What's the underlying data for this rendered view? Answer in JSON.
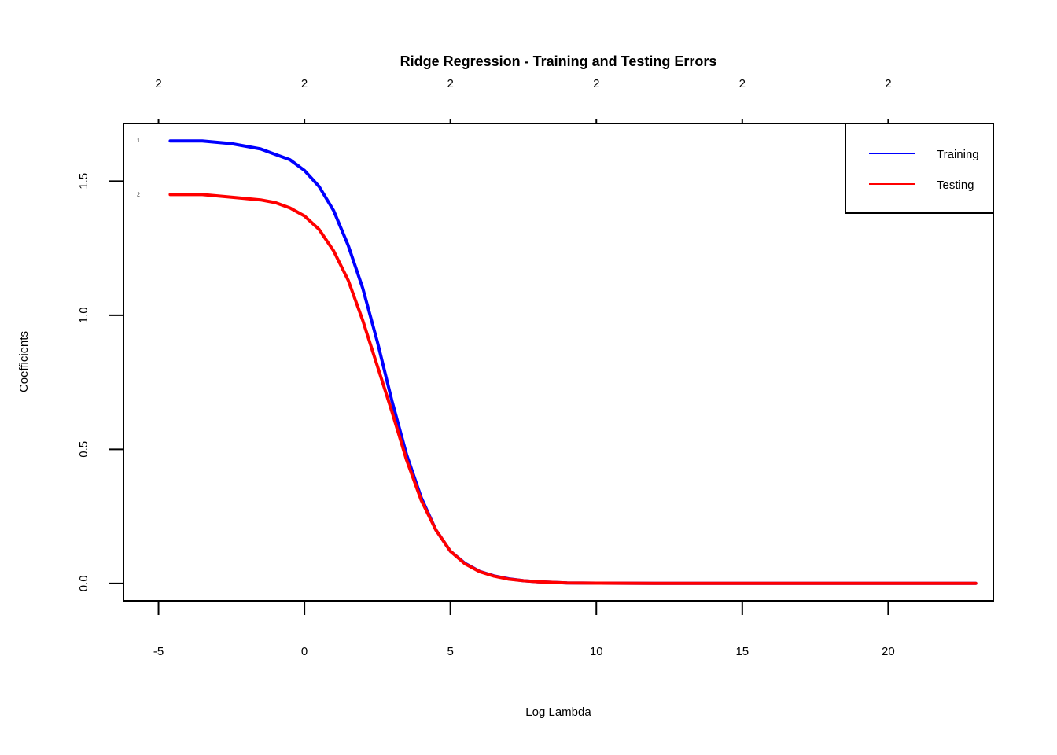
{
  "chart_data": {
    "type": "line",
    "title": "Ridge Regression - Training and Testing Errors",
    "xlabel": "Log Lambda",
    "ylabel": "Coefficients",
    "xlim": [
      -6.2,
      23.6
    ],
    "ylim": [
      -0.065,
      1.715
    ],
    "x_ticks": [
      -5,
      0,
      5,
      10,
      15,
      20
    ],
    "x_tick_labels": [
      "-5",
      "0",
      "5",
      "10",
      "15",
      "20"
    ],
    "y_ticks": [
      0,
      0.5,
      1,
      1.5
    ],
    "y_tick_labels": [
      "0.0",
      "0.5",
      "1.0",
      "1.5"
    ],
    "top_ticks": [
      -5,
      0,
      5,
      10,
      15,
      20
    ],
    "top_tick_labels": [
      "2",
      "2",
      "2",
      "2",
      "2",
      "2"
    ],
    "grid": false,
    "legend": {
      "position": "top-right",
      "entries": [
        "Training",
        "Testing"
      ]
    },
    "curve_labels": [
      "1",
      "2"
    ],
    "x": [
      -4.6,
      -3.5,
      -2.5,
      -1.5,
      -1,
      -0.5,
      0,
      0.5,
      1,
      1.5,
      2,
      2.5,
      3,
      3.5,
      4,
      4.5,
      5,
      5.5,
      6,
      6.5,
      7,
      7.5,
      8,
      8.5,
      9,
      10,
      12,
      15,
      18,
      21,
      23
    ],
    "series": [
      {
        "name": "Training",
        "color": "#0000ff",
        "values": [
          1.65,
          1.65,
          1.64,
          1.62,
          1.6,
          1.58,
          1.54,
          1.48,
          1.39,
          1.26,
          1.1,
          0.9,
          0.68,
          0.48,
          0.32,
          0.2,
          0.12,
          0.075,
          0.045,
          0.028,
          0.017,
          0.01,
          0.006,
          0.004,
          0.002,
          0.001,
          0.0,
          0.0,
          0.0,
          0.0,
          0.0
        ]
      },
      {
        "name": "Testing",
        "color": "#ff0000",
        "values": [
          1.45,
          1.45,
          1.44,
          1.43,
          1.42,
          1.4,
          1.37,
          1.32,
          1.24,
          1.13,
          0.98,
          0.81,
          0.64,
          0.46,
          0.31,
          0.2,
          0.12,
          0.073,
          0.044,
          0.027,
          0.016,
          0.01,
          0.006,
          0.004,
          0.002,
          0.001,
          0.0,
          0.0,
          0.0,
          0.0,
          0.0
        ]
      }
    ]
  }
}
